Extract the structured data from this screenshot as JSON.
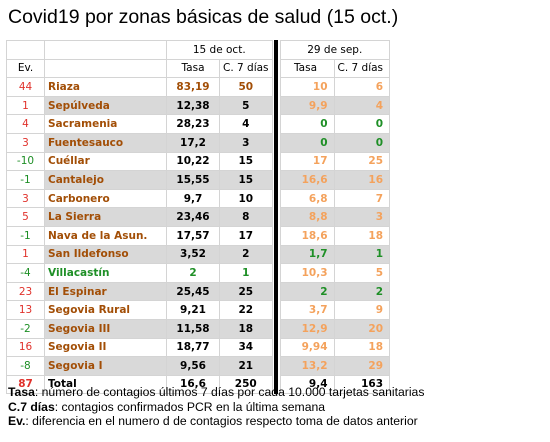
{
  "title": "Covid19 por zonas básicas de salud (15 oct.)",
  "colors": {
    "red": "#e0312b",
    "orange": "#f08020",
    "green": "#1e8f26",
    "brown": "#a24e06",
    "salmon": "#f4a25c",
    "black": "#000000",
    "shade": "#d9d9d9"
  },
  "header": {
    "date1": "15 de oct.",
    "date2": "29 de sep.",
    "ev": "Ev.",
    "tasa": "Tasa",
    "c7": "C. 7 días"
  },
  "rows": [
    {
      "ev": "44",
      "name": "Riaza",
      "t1": "83,19",
      "c1": "50",
      "t2": "10",
      "c2": "6",
      "ev_color": "red",
      "name_color": "brown",
      "new_color": "brown",
      "old_color": "salmon"
    },
    {
      "ev": "1",
      "name": "Sepúlveda",
      "t1": "12,38",
      "c1": "5",
      "t2": "9,9",
      "c2": "4",
      "ev_color": "red",
      "name_color": "brown",
      "new_color": "black",
      "old_color": "salmon"
    },
    {
      "ev": "4",
      "name": "Sacramenia",
      "t1": "28,23",
      "c1": "4",
      "t2": "0",
      "c2": "0",
      "ev_color": "red",
      "name_color": "brown",
      "new_color": "black",
      "old_color": "green"
    },
    {
      "ev": "3",
      "name": "Fuentesauco",
      "t1": "17,2",
      "c1": "3",
      "t2": "0",
      "c2": "0",
      "ev_color": "red",
      "name_color": "brown",
      "new_color": "black",
      "old_color": "green"
    },
    {
      "ev": "-10",
      "name": "Cuéllar",
      "t1": "10,22",
      "c1": "15",
      "t2": "17",
      "c2": "25",
      "ev_color": "green",
      "name_color": "brown",
      "new_color": "black",
      "old_color": "salmon"
    },
    {
      "ev": "-1",
      "name": "Cantalejo",
      "t1": "15,55",
      "c1": "15",
      "t2": "16,6",
      "c2": "16",
      "ev_color": "green",
      "name_color": "brown",
      "new_color": "black",
      "old_color": "salmon"
    },
    {
      "ev": "3",
      "name": "Carbonero",
      "t1": "9,7",
      "c1": "10",
      "t2": "6,8",
      "c2": "7",
      "ev_color": "red",
      "name_color": "brown",
      "new_color": "black",
      "old_color": "salmon"
    },
    {
      "ev": "5",
      "name": "La Sierra",
      "t1": "23,46",
      "c1": "8",
      "t2": "8,8",
      "c2": "3",
      "ev_color": "red",
      "name_color": "brown",
      "new_color": "black",
      "old_color": "salmon"
    },
    {
      "ev": "-1",
      "name": "Nava de la Asun.",
      "t1": "17,57",
      "c1": "17",
      "t2": "18,6",
      "c2": "18",
      "ev_color": "green",
      "name_color": "brown",
      "new_color": "black",
      "old_color": "salmon"
    },
    {
      "ev": "1",
      "name": "San Ildefonso",
      "t1": "3,52",
      "c1": "2",
      "t2": "1,7",
      "c2": "1",
      "ev_color": "red",
      "name_color": "brown",
      "new_color": "black",
      "old_color": "green"
    },
    {
      "ev": "-4",
      "name": "Villacastín",
      "t1": "2",
      "c1": "1",
      "t2": "10,3",
      "c2": "5",
      "ev_color": "green",
      "name_color": "green",
      "new_color": "green",
      "old_color": "salmon"
    },
    {
      "ev": "23",
      "name": "El Espinar",
      "t1": "25,45",
      "c1": "25",
      "t2": "2",
      "c2": "2",
      "ev_color": "red",
      "name_color": "brown",
      "new_color": "black",
      "old_color": "green"
    },
    {
      "ev": "13",
      "name": "Segovia Rural",
      "t1": "9,21",
      "c1": "22",
      "t2": "3,7",
      "c2": "9",
      "ev_color": "red",
      "name_color": "brown",
      "new_color": "black",
      "old_color": "salmon"
    },
    {
      "ev": "-2",
      "name": "Segovia III",
      "t1": "11,58",
      "c1": "18",
      "t2": "12,9",
      "c2": "20",
      "ev_color": "green",
      "name_color": "brown",
      "new_color": "black",
      "old_color": "salmon"
    },
    {
      "ev": "16",
      "name": "Segovia II",
      "t1": "18,77",
      "c1": "34",
      "t2": "9,94",
      "c2": "18",
      "ev_color": "red",
      "name_color": "brown",
      "new_color": "black",
      "old_color": "salmon"
    },
    {
      "ev": "-8",
      "name": "Segovia I",
      "t1": "9,56",
      "c1": "21",
      "t2": "13,2",
      "c2": "29",
      "ev_color": "green",
      "name_color": "brown",
      "new_color": "black",
      "old_color": "salmon"
    }
  ],
  "total": {
    "ev": "87",
    "name": "Total",
    "t1": "16,6",
    "c1": "250",
    "t2": "9,4",
    "c2": "163"
  },
  "legend": {
    "l1_term": "Tasa",
    "l1_text": ": número de contagios últimos 7 días por cada 10.000 tarjetas sanitarias",
    "l2_term": "C.7 días",
    "l2_text": ": contagios confirmados PCR en la última semana",
    "l3_term": "Ev.",
    "l3_text": ": diferencia en el numero d de contagios respecto toma de datos anterior"
  }
}
